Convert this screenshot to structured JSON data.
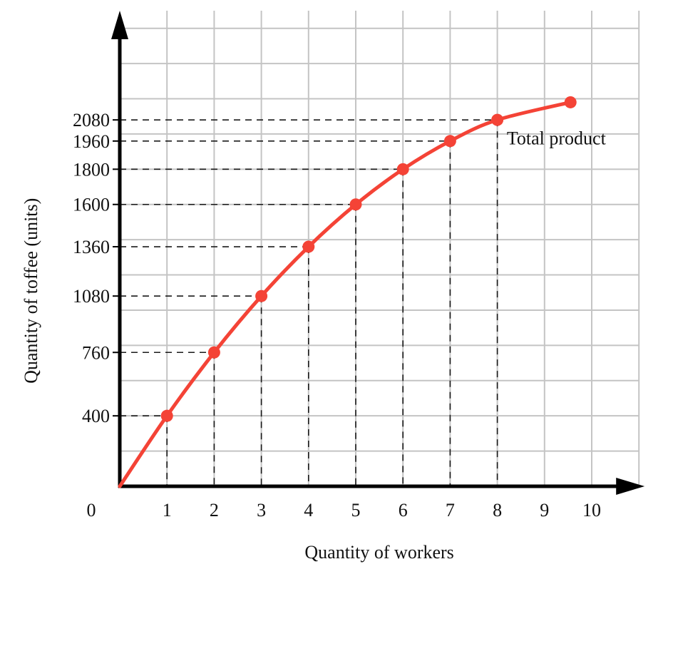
{
  "chart_data": {
    "type": "line",
    "xlabel": "Quantity of workers",
    "ylabel": "Quantity of toffee (units)",
    "origin_label": "0",
    "xlim": [
      0,
      11
    ],
    "ylim": [
      0,
      2700
    ],
    "grid": true,
    "x_ticks": [
      "1",
      "2",
      "3",
      "4",
      "5",
      "6",
      "7",
      "8",
      "9",
      "10"
    ],
    "y_ticks": [
      "400",
      "760",
      "1080",
      "1360",
      "1600",
      "1800",
      "1960",
      "2080"
    ],
    "series": [
      {
        "name": "Total product",
        "x": [
          0,
          1,
          2,
          3,
          4,
          5,
          6,
          7,
          8,
          9.55
        ],
        "y": [
          0,
          400,
          760,
          1080,
          1360,
          1600,
          1800,
          1960,
          2080,
          2180
        ],
        "markers_start_index": 1
      }
    ],
    "annotation": {
      "text": "Total product",
      "x": 8.2,
      "y": 1940
    },
    "colors": {
      "curve": "#f44336",
      "axis": "#000000",
      "grid": "#c4c4c4"
    }
  }
}
